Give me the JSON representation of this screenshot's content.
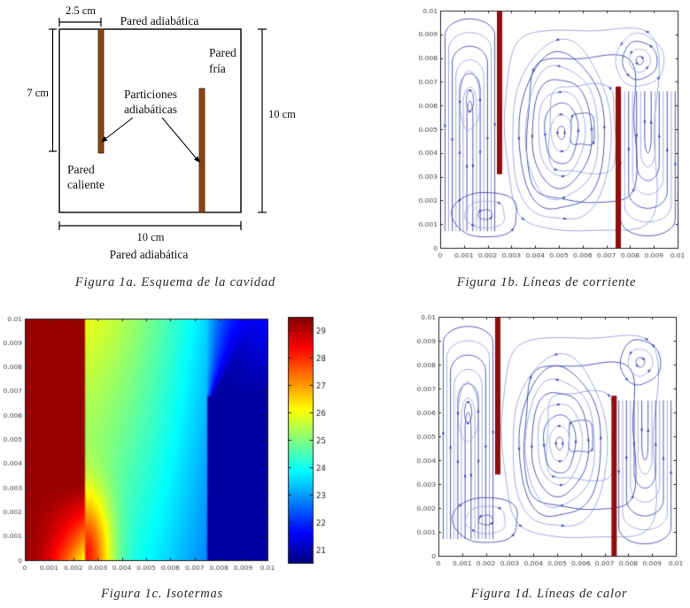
{
  "page": {
    "background": "#ffffff"
  },
  "captions": {
    "a": "Figura 1a. Esquema de la cavidad",
    "b": "Figura 1b. Líneas de corriente",
    "c": "Figura 1c. Isotermas",
    "d": "Figura 1d. Líneas de calor"
  },
  "schematic": {
    "dim_top": "2.5 cm",
    "wall_top": "Pared adiabática",
    "wall_cold_line1": "Pared",
    "wall_cold_line2": "fría",
    "dim_left": "7 cm",
    "partitions_line1": "Particiones",
    "partitions_line2": "adiabáticas",
    "wall_hot_line1": "Pared",
    "wall_hot_line2": "caliente",
    "dim_right": "10 cm",
    "dim_bottom": "10 cm",
    "wall_bottom": "Pared adiabática",
    "partition_color": "#8a4515",
    "partition_border": "#3d2008",
    "line_color": "#000000"
  },
  "chart_data": [
    {
      "id": "b",
      "type": "line",
      "subtype": "streamlines",
      "title": "Figura 1b. Líneas de corriente",
      "xlabel": "",
      "ylabel": "",
      "xlim": [
        0,
        0.01
      ],
      "ylim": [
        0,
        0.01
      ],
      "grid": false,
      "xticks": [
        "0",
        "0.001",
        "0.002",
        "0.003",
        "0.004",
        "0.005",
        "0.006",
        "0.007",
        "0.008",
        "0.009",
        "0.01"
      ],
      "yticks": [
        "0",
        "0.001",
        "0.002",
        "0.003",
        "0.004",
        "0.005",
        "0.006",
        "0.007",
        "0.008",
        "0.009",
        "0.01"
      ],
      "line_color_dark": "#4245a8",
      "line_color_light": "#9aa2dc",
      "partition_color": "#8f0e0e",
      "partitions": [
        {
          "x": 0.0025,
          "y0": 0.0031,
          "y1": 0.01
        },
        {
          "x": 0.0075,
          "y0": 0.0,
          "y1": 0.0068
        }
      ],
      "cells": [
        {
          "type": "n",
          "cx": 0.00125,
          "rx": 0.00105,
          "ybot": 0.0007,
          "vy_in": 0.0062,
          "vy_out": 0.00965,
          "n": 7
        },
        {
          "type": "loop",
          "cx": 0.00125,
          "cy": 0.0062,
          "rx": 0.00055,
          "ry": 0.0016,
          "p": 2,
          "n": 2
        },
        {
          "type": "loop",
          "cx": 0.006,
          "cy": 0.005,
          "rx": 0.00355,
          "ry": 0.00475,
          "p": 6,
          "n": 4
        },
        {
          "type": "loop",
          "cx": 0.0051,
          "cy": 0.00485,
          "rx": 0.0022,
          "ry": 0.004,
          "p": 2.2,
          "n": 8
        },
        {
          "type": "loop",
          "cx": 0.0084,
          "cy": 0.0079,
          "rx": 0.00115,
          "ry": 0.00125,
          "p": 2,
          "n": 4
        },
        {
          "type": "u",
          "cx": 0.00875,
          "rx": 0.00115,
          "ytop": 0.0066,
          "vy_in": 0.004,
          "vy_out": 0.0005,
          "n": 7
        },
        {
          "type": "loop",
          "cx": 0.0019,
          "cy": 0.0014,
          "rx": 0.0016,
          "ry": 0.0011,
          "p": 2.4,
          "n": 3
        }
      ]
    },
    {
      "id": "c",
      "type": "heatmap",
      "title": "Figura 1c. Isotermas",
      "xlabel": "",
      "ylabel": "",
      "xlim": [
        0,
        0.01
      ],
      "ylim": [
        0,
        0.01
      ],
      "grid": false,
      "xticks": [
        "0",
        "0.001",
        "0.002",
        "0.003",
        "0.004",
        "0.005",
        "0.006",
        "0.007",
        "0.008",
        "0.009",
        "0.01"
      ],
      "yticks": [
        "0",
        "0.001",
        "0.002",
        "0.003",
        "0.004",
        "0.005",
        "0.006",
        "0.007",
        "0.008",
        "0.009",
        "0.01"
      ],
      "colormap": "jet",
      "colorbar_ticks": [
        29,
        28,
        27,
        26,
        25,
        24,
        23,
        22,
        21
      ],
      "temp_min": 20.5,
      "temp_max": 29.5,
      "hot_wall_temp": 29.3,
      "cold_region_temp": 20.8,
      "partition_left_x": 0.0025,
      "partition_left_bottom": 0.003,
      "partition_right_x": 0.0075,
      "partition_right_top": 0.0068
    },
    {
      "id": "d",
      "type": "line",
      "subtype": "heatlines",
      "title": "Figura 1d. Líneas de calor",
      "xlabel": "",
      "ylabel": "",
      "xlim": [
        0,
        0.01
      ],
      "ylim": [
        0,
        0.01
      ],
      "grid": false,
      "xticks": [
        "0",
        "0.001",
        "0.002",
        "0.003",
        "0.004",
        "0.005",
        "0.006",
        "0.007",
        "0.008",
        "0.009",
        "0.01"
      ],
      "yticks": [
        "0",
        "0.001",
        "0.002",
        "0.003",
        "0.004",
        "0.005",
        "0.006",
        "0.007",
        "0.008",
        "0.009",
        "0.01"
      ],
      "line_color_dark": "#4245a8",
      "line_color_light": "#9aa2dc",
      "partition_color": "#8f0e0e",
      "partitions": [
        {
          "x": 0.0025,
          "y0": 0.0034,
          "y1": 0.01
        },
        {
          "x": 0.0074,
          "y0": 0.0,
          "y1": 0.0067
        }
      ],
      "cells": [
        {
          "type": "n",
          "cx": 0.00125,
          "rx": 0.00105,
          "ybot": 0.0007,
          "vy_in": 0.006,
          "vy_out": 0.0096,
          "n": 7
        },
        {
          "type": "loop",
          "cx": 0.00125,
          "cy": 0.006,
          "rx": 0.00055,
          "ry": 0.0016,
          "p": 2,
          "n": 2
        },
        {
          "type": "loop",
          "cx": 0.006,
          "cy": 0.005,
          "rx": 0.0036,
          "ry": 0.0047,
          "p": 6,
          "n": 4
        },
        {
          "type": "loop",
          "cx": 0.0051,
          "cy": 0.0047,
          "rx": 0.0021,
          "ry": 0.0038,
          "p": 2.2,
          "n": 8
        },
        {
          "type": "loop",
          "cx": 0.0085,
          "cy": 0.0081,
          "rx": 0.001,
          "ry": 0.0011,
          "p": 2,
          "n": 3
        },
        {
          "type": "u",
          "cx": 0.0087,
          "rx": 0.0011,
          "ytop": 0.0065,
          "vy_in": 0.004,
          "vy_out": 0.0005,
          "n": 7
        },
        {
          "type": "loop",
          "cx": 0.002,
          "cy": 0.0015,
          "rx": 0.0016,
          "ry": 0.0011,
          "p": 2.4,
          "n": 3
        }
      ]
    }
  ]
}
